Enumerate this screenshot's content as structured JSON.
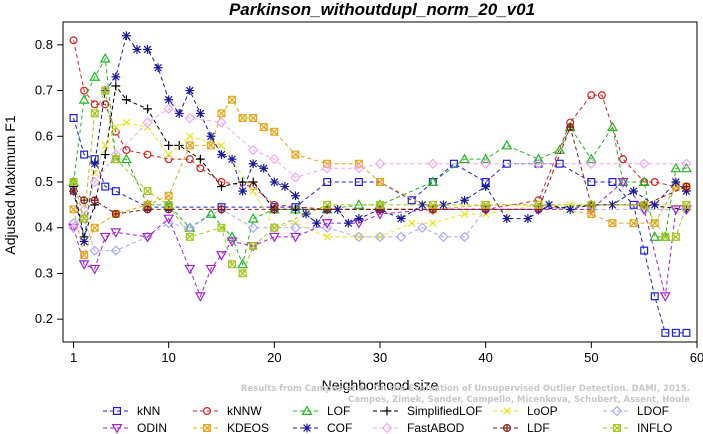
{
  "chart_data": {
    "type": "line",
    "title": "Parkinson_withoutdupl_norm_20_v01",
    "xlabel": "Neighborhood size",
    "ylabel": "Adjusted Maximum F1",
    "xlim": [
      0,
      60
    ],
    "ylim": [
      0.15,
      0.85
    ],
    "xticks": [
      1,
      10,
      20,
      30,
      40,
      50,
      60
    ],
    "yticks": [
      0.2,
      0.3,
      0.4,
      0.5,
      0.6,
      0.7,
      0.8
    ],
    "grid": false,
    "legend_position": "bottom",
    "watermark": [
      "Results from Campos et al. On the Evaluation of Unsupervised Outlier Detection. DAMI, 2015.",
      "Campos, Zimek, Sander, Campello, Micenkova, Schubert, Assent, Houle"
    ],
    "series": [
      {
        "name": "kNN",
        "color": "#1f1fd9",
        "marker": "square",
        "x": [
          1,
          2,
          3,
          4,
          5,
          8,
          10,
          15,
          20,
          22,
          25,
          28,
          30,
          33,
          35,
          37,
          40,
          42,
          45,
          47,
          50,
          52,
          54,
          55,
          56,
          57,
          58,
          59
        ],
        "y": [
          0.64,
          0.56,
          0.55,
          0.49,
          0.48,
          0.445,
          0.445,
          0.445,
          0.445,
          0.445,
          0.5,
          0.5,
          0.5,
          0.46,
          0.5,
          0.54,
          0.5,
          0.54,
          0.54,
          0.54,
          0.5,
          0.5,
          0.45,
          0.35,
          0.25,
          0.17,
          0.17,
          0.17
        ]
      },
      {
        "name": "kNNW",
        "color": "#d91f1f",
        "marker": "circle",
        "x": [
          1,
          2,
          3,
          4,
          5,
          6,
          8,
          10,
          12,
          13,
          15,
          18,
          20,
          25,
          30,
          35,
          40,
          45,
          48,
          50,
          51,
          53,
          55,
          56,
          58,
          59
        ],
        "y": [
          0.81,
          0.7,
          0.67,
          0.67,
          0.61,
          0.57,
          0.56,
          0.55,
          0.55,
          0.53,
          0.5,
          0.49,
          0.45,
          0.44,
          0.44,
          0.44,
          0.44,
          0.46,
          0.63,
          0.69,
          0.69,
          0.55,
          0.5,
          0.5,
          0.49,
          0.49
        ]
      },
      {
        "name": "LOF",
        "color": "#1fb81f",
        "marker": "triangle",
        "x": [
          1,
          2,
          3,
          4,
          5,
          6,
          8,
          10,
          12,
          14,
          16,
          17,
          18,
          20,
          22,
          25,
          28,
          30,
          35,
          38,
          40,
          42,
          45,
          47,
          48,
          50,
          52,
          53,
          55,
          56,
          57,
          58,
          59
        ],
        "y": [
          0.5,
          0.68,
          0.73,
          0.77,
          0.55,
          0.55,
          0.45,
          0.45,
          0.4,
          0.43,
          0.38,
          0.32,
          0.42,
          0.44,
          0.44,
          0.44,
          0.45,
          0.45,
          0.5,
          0.55,
          0.55,
          0.58,
          0.55,
          0.57,
          0.62,
          0.55,
          0.62,
          0.5,
          0.5,
          0.38,
          0.38,
          0.53,
          0.53
        ]
      },
      {
        "name": "SimplifiedLOF",
        "color": "#000000",
        "marker": "plus",
        "x": [
          1,
          2,
          3,
          4,
          5,
          6,
          8,
          10,
          11,
          13,
          15,
          17,
          18,
          20,
          22,
          25,
          30,
          35,
          40,
          45,
          50,
          55,
          59
        ],
        "y": [
          0.49,
          0.38,
          0.45,
          0.56,
          0.71,
          0.68,
          0.66,
          0.58,
          0.58,
          0.55,
          0.49,
          0.5,
          0.5,
          0.44,
          0.44,
          0.44,
          0.44,
          0.44,
          0.44,
          0.44,
          0.45,
          0.45,
          0.44
        ]
      },
      {
        "name": "LoOP",
        "color": "#e6e61a",
        "marker": "x",
        "x": [
          1,
          2,
          3,
          4,
          5,
          6,
          8,
          10,
          12,
          15,
          18,
          20,
          22,
          25,
          28,
          30,
          33,
          35,
          38,
          40,
          45,
          48,
          50,
          55,
          59
        ],
        "y": [
          0.5,
          0.42,
          0.52,
          0.58,
          0.62,
          0.63,
          0.62,
          0.56,
          0.6,
          0.58,
          0.48,
          0.4,
          0.41,
          0.38,
          0.38,
          0.38,
          0.41,
          0.41,
          0.43,
          0.43,
          0.45,
          0.45,
          0.45,
          0.45,
          0.45
        ]
      },
      {
        "name": "LDOF",
        "color": "#aaaaff",
        "marker": "diamond",
        "x": [
          1,
          2,
          3,
          5,
          8,
          10,
          12,
          15,
          18,
          20,
          22,
          25,
          28,
          30,
          32,
          34,
          36,
          38,
          40,
          45,
          50,
          55,
          59
        ],
        "y": [
          0.41,
          0.42,
          0.35,
          0.35,
          0.38,
          0.41,
          0.4,
          0.44,
          0.4,
          0.4,
          0.4,
          0.4,
          0.38,
          0.38,
          0.38,
          0.4,
          0.38,
          0.38,
          0.44,
          0.44,
          0.44,
          0.44,
          0.44
        ]
      },
      {
        "name": "ODIN",
        "color": "#a61fd9",
        "marker": "triangle-down",
        "x": [
          1,
          2,
          3,
          4,
          5,
          8,
          10,
          12,
          13,
          14,
          15,
          16,
          18,
          20,
          22,
          25,
          28,
          30,
          35,
          40,
          45,
          50,
          53,
          55,
          57,
          58,
          59
        ],
        "y": [
          0.4,
          0.32,
          0.31,
          0.38,
          0.39,
          0.38,
          0.42,
          0.31,
          0.25,
          0.31,
          0.34,
          0.37,
          0.36,
          0.38,
          0.38,
          0.41,
          0.41,
          0.43,
          0.44,
          0.44,
          0.44,
          0.44,
          0.5,
          0.44,
          0.25,
          0.44,
          0.44
        ]
      },
      {
        "name": "KDEOS",
        "color": "#e6a51a",
        "marker": "square-x",
        "x": [
          1,
          2,
          3,
          5,
          8,
          10,
          12,
          14,
          15,
          16,
          17,
          18,
          19,
          20,
          22,
          25,
          28,
          30,
          35,
          40,
          45,
          50,
          52,
          54,
          56,
          58,
          59
        ],
        "y": [
          0.44,
          0.34,
          0.4,
          0.43,
          0.45,
          0.47,
          0.58,
          0.58,
          0.65,
          0.68,
          0.64,
          0.64,
          0.62,
          0.61,
          0.56,
          0.54,
          0.54,
          0.5,
          0.44,
          0.45,
          0.45,
          0.43,
          0.41,
          0.41,
          0.41,
          0.49,
          0.49
        ]
      },
      {
        "name": "COF",
        "color": "#1a1a99",
        "marker": "asterisk",
        "x": [
          1,
          2,
          3,
          4,
          5,
          6,
          7,
          8,
          9,
          10,
          11,
          12,
          13,
          14,
          15,
          16,
          17,
          18,
          19,
          20,
          21,
          22,
          23,
          24,
          25,
          26,
          27,
          28,
          30,
          32,
          34,
          36,
          38,
          40,
          42,
          44,
          46,
          48,
          50,
          52,
          54,
          56,
          58,
          59
        ],
        "y": [
          0.48,
          0.37,
          0.54,
          0.7,
          0.73,
          0.82,
          0.79,
          0.79,
          0.75,
          0.68,
          0.65,
          0.7,
          0.65,
          0.6,
          0.56,
          0.55,
          0.48,
          0.54,
          0.53,
          0.5,
          0.49,
          0.47,
          0.43,
          0.41,
          0.44,
          0.44,
          0.41,
          0.42,
          0.44,
          0.42,
          0.45,
          0.45,
          0.46,
          0.49,
          0.42,
          0.42,
          0.45,
          0.44,
          0.45,
          0.45,
          0.48,
          0.45,
          0.5,
          0.48
        ]
      },
      {
        "name": "FastABOD",
        "color": "#f2a6f2",
        "marker": "diamond",
        "x": [
          1,
          2,
          3,
          5,
          8,
          10,
          12,
          15,
          18,
          20,
          22,
          25,
          28,
          30,
          35,
          40,
          45,
          50,
          55,
          59
        ],
        "y": [
          0.4,
          0.44,
          0.5,
          0.56,
          0.63,
          0.66,
          0.64,
          0.63,
          0.57,
          0.55,
          0.51,
          0.53,
          0.53,
          0.54,
          0.54,
          0.54,
          0.54,
          0.54,
          0.54,
          0.54
        ]
      },
      {
        "name": "LDF",
        "color": "#8b1a1a",
        "marker": "circle-plus",
        "x": [
          1,
          2,
          3,
          5,
          8,
          10,
          15,
          20,
          25,
          30,
          35,
          40,
          45,
          48,
          50,
          55,
          59
        ],
        "y": [
          0.48,
          0.46,
          0.46,
          0.43,
          0.44,
          0.44,
          0.44,
          0.44,
          0.44,
          0.44,
          0.44,
          0.44,
          0.44,
          0.62,
          0.45,
          0.45,
          0.49
        ]
      },
      {
        "name": "INFLO",
        "color": "#a6c61a",
        "marker": "square-x",
        "x": [
          1,
          2,
          3,
          4,
          5,
          8,
          10,
          12,
          15,
          16,
          17,
          18,
          20,
          25,
          30,
          35,
          40,
          45,
          50,
          55,
          57,
          58,
          59
        ],
        "y": [
          0.5,
          0.42,
          0.65,
          0.7,
          0.55,
          0.48,
          0.45,
          0.38,
          0.4,
          0.32,
          0.3,
          0.36,
          0.4,
          0.45,
          0.45,
          0.45,
          0.45,
          0.45,
          0.45,
          0.45,
          0.38,
          0.38,
          0.45
        ]
      }
    ]
  }
}
